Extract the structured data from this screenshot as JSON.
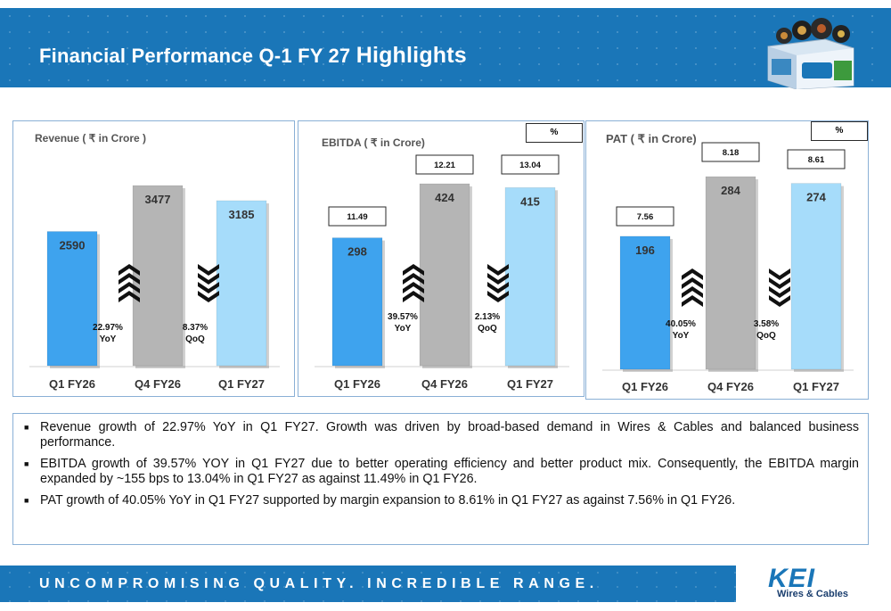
{
  "header": {
    "title_main": "Financial Performance Q-1 FY 27",
    "title_tail": "Highlights"
  },
  "panels": {
    "revenue": {
      "title": "Revenue  ( ₹ in Crore )"
    },
    "ebitda": {
      "title": "EBITDA ( ₹ in Crore)",
      "pct_label": "%"
    },
    "pat": {
      "title": "PAT ( ₹ in Crore)",
      "pct_label": "%"
    }
  },
  "chart_data": [
    {
      "type": "bar",
      "title": "Revenue  ( ₹ in Crore )",
      "categories": [
        "Q1 FY26",
        "Q4 FY26",
        "Q1 FY27"
      ],
      "values": [
        2590,
        3477,
        3185
      ],
      "value_labels": [
        "2590",
        "3477",
        "3185"
      ],
      "bar_colors": [
        "#3ea3ee",
        "#b5b5b5",
        "#a6dcfa"
      ],
      "annotations": [
        {
          "direction": "up",
          "value": "22.97%",
          "label": "YoY"
        },
        {
          "direction": "down",
          "value": "8.37%",
          "label": "QoQ"
        }
      ]
    },
    {
      "type": "bar",
      "title": "EBITDA ( ₹ in Crore)",
      "categories": [
        "Q1 FY26",
        "Q4 FY26",
        "Q1 FY27"
      ],
      "values": [
        298,
        424,
        415
      ],
      "value_labels": [
        "298",
        "424",
        "415"
      ],
      "margins": [
        "11.49",
        "12.21",
        "13.04"
      ],
      "bar_colors": [
        "#3ea3ee",
        "#b5b5b5",
        "#a6dcfa"
      ],
      "annotations": [
        {
          "direction": "up",
          "value": "39.57%",
          "label": "YoY"
        },
        {
          "direction": "down",
          "value": "2.13%",
          "label": "QoQ"
        }
      ]
    },
    {
      "type": "bar",
      "title": "PAT ( ₹ in Crore)",
      "categories": [
        "Q1 FY26",
        "Q4 FY26",
        "Q1 FY27"
      ],
      "values": [
        196,
        284,
        274
      ],
      "value_labels": [
        "196",
        "284",
        "274"
      ],
      "margins": [
        "7.56",
        "8.18",
        "8.61"
      ],
      "bar_colors": [
        "#3ea3ee",
        "#b5b5b5",
        "#a6dcfa"
      ],
      "annotations": [
        {
          "direction": "up",
          "value": "40.05%",
          "label": "YoY"
        },
        {
          "direction": "down",
          "value": "3.58%",
          "label": "QoQ"
        }
      ]
    }
  ],
  "bullets": [
    "Revenue growth of 22.97% YoY in Q1 FY27. Growth was driven by broad-based demand in Wires & Cables and balanced business performance.",
    "EBITDA growth of 39.57% YOY in Q1 FY27 due to better operating efficiency and better product mix. Consequently, the EBITDA margin expanded by ~155 bps to 13.04% in Q1 FY27 as against 11.49% in Q1 FY26.",
    "PAT growth of 40.05% YoY in Q1 FY27 supported by margin expansion to 8.61% in Q1 FY27 as against 7.56% in Q1 FY26."
  ],
  "footer": {
    "tagline": "UNCOMPROMISING QUALITY. INCREDIBLE RANGE."
  },
  "logo": {
    "brand": "KEI",
    "sub": "Wires & Cables"
  },
  "colors": {
    "brand_blue": "#1a76b8",
    "bar_dark": "#3ea3ee",
    "bar_gray": "#b5b5b5",
    "bar_light": "#a6dcfa"
  }
}
